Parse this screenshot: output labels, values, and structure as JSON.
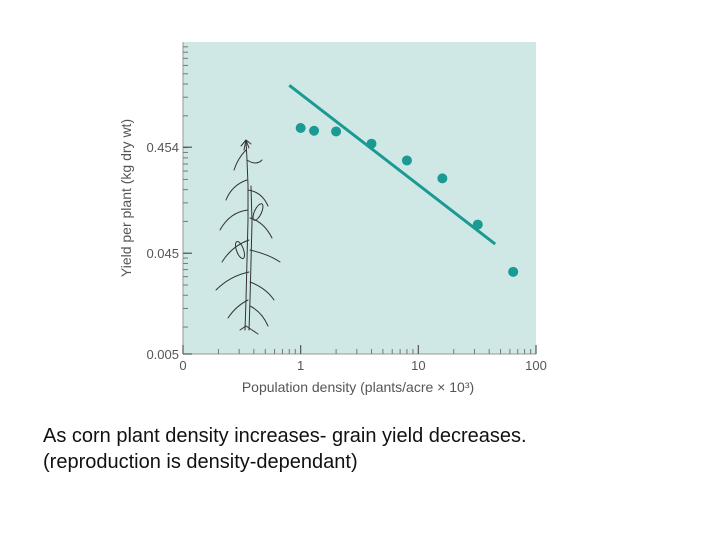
{
  "chart_data": {
    "type": "scatter",
    "x_scale": "log",
    "y_scale": "log",
    "xlabel": "Population density (plants/acre × 10³)",
    "ylabel": "Yield per plant (kg dry wt)",
    "x_ticks": [
      {
        "value": 0.1,
        "label": "0"
      },
      {
        "value": 1,
        "label": "1"
      },
      {
        "value": 10,
        "label": "10"
      },
      {
        "value": 100,
        "label": "100"
      }
    ],
    "y_ticks": [
      {
        "value": 0.005,
        "label": "0.005"
      },
      {
        "value": 0.045,
        "label": "0.045"
      },
      {
        "value": 0.454,
        "label": "0.454"
      }
    ],
    "xlim": [
      0.1,
      100
    ],
    "ylim": [
      0.005,
      4.5
    ],
    "points": [
      {
        "x": 1.0,
        "y": 0.69
      },
      {
        "x": 1.3,
        "y": 0.65
      },
      {
        "x": 2.0,
        "y": 0.64
      },
      {
        "x": 4.0,
        "y": 0.49
      },
      {
        "x": 8.0,
        "y": 0.34
      },
      {
        "x": 16,
        "y": 0.23
      },
      {
        "x": 32,
        "y": 0.084
      },
      {
        "x": 64,
        "y": 0.03
      }
    ],
    "trend_line": {
      "x": [
        0.8,
        45
      ],
      "y": [
        1.75,
        0.055
      ]
    },
    "plot_background": "#cfe8e5",
    "point_color": "#1a9a93",
    "line_color": "#1a9a93",
    "grid": false,
    "illustration": "corn-plant"
  },
  "caption": {
    "line1": "As corn plant density increases- grain yield decreases.",
    "line2": "(reproduction is density-dependant)"
  }
}
